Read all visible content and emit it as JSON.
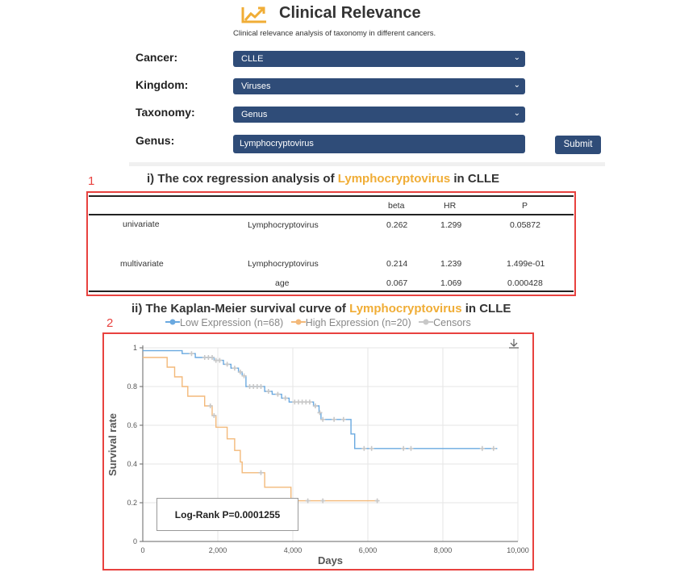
{
  "header": {
    "title": "Clinical Relevance",
    "subtitle": "Clinical relevance analysis of taxonomy in different cancers."
  },
  "form": {
    "cancer_label": "Cancer:",
    "cancer_value": "CLLE",
    "kingdom_label": "Kingdom:",
    "kingdom_value": "Viruses",
    "taxonomy_label": "Taxonomy:",
    "taxonomy_value": "Genus",
    "genus_label": "Genus:",
    "genus_value": "Lymphocryptovirus",
    "submit_label": "Submit"
  },
  "cox": {
    "marker": "1",
    "title_prefix": "i) The cox regression analysis of ",
    "title_taxon": "Lymphocryptovirus",
    "title_suffix": " in CLLE",
    "headers": [
      "beta",
      "HR",
      "P"
    ],
    "rows": [
      {
        "model": "univariate",
        "var": "Lymphocryptovirus",
        "beta": "0.262",
        "hr": "1.299",
        "p": "0.05872"
      },
      {
        "model": "multivariate",
        "var": "Lymphocryptovirus",
        "beta": "0.214",
        "hr": "1.239",
        "p": "1.499e-01"
      },
      {
        "model": "",
        "var": "age",
        "beta": "0.067",
        "hr": "1.069",
        "p": "0.000428"
      }
    ]
  },
  "km": {
    "marker": "2",
    "title_prefix": "ii) The Kaplan-Meier survival curve of ",
    "title_taxon": "Lymphocryptovirus",
    "title_suffix": " in CLLE",
    "download_icon": "download-icon",
    "logrank_label": "Log-Rank P=0.0001255"
  },
  "chart_data": {
    "type": "line",
    "xlabel": "Days",
    "ylabel": "Survival rate",
    "xlim": [
      0,
      10000
    ],
    "ylim": [
      0,
      1
    ],
    "xticks": [
      "0",
      "2,000",
      "4,000",
      "6,000",
      "8,000",
      "10,000"
    ],
    "yticks": [
      "0",
      "0.2",
      "0.4",
      "0.6",
      "0.8",
      "1"
    ],
    "grid": true,
    "legend_position": "top",
    "series": [
      {
        "name": "Low Expression (n=68)",
        "color": "#6aa9e0",
        "steps": [
          [
            0,
            0.985
          ],
          [
            1050,
            0.985
          ],
          [
            1050,
            0.97
          ],
          [
            1400,
            0.97
          ],
          [
            1400,
            0.95
          ],
          [
            1900,
            0.95
          ],
          [
            1900,
            0.935
          ],
          [
            2150,
            0.935
          ],
          [
            2150,
            0.915
          ],
          [
            2350,
            0.915
          ],
          [
            2350,
            0.895
          ],
          [
            2550,
            0.895
          ],
          [
            2550,
            0.875
          ],
          [
            2650,
            0.875
          ],
          [
            2650,
            0.855
          ],
          [
            2750,
            0.855
          ],
          [
            2750,
            0.8
          ],
          [
            3250,
            0.8
          ],
          [
            3250,
            0.775
          ],
          [
            3450,
            0.775
          ],
          [
            3450,
            0.76
          ],
          [
            3700,
            0.76
          ],
          [
            3700,
            0.74
          ],
          [
            3900,
            0.74
          ],
          [
            3900,
            0.72
          ],
          [
            4550,
            0.72
          ],
          [
            4550,
            0.7
          ],
          [
            4700,
            0.7
          ],
          [
            4700,
            0.665
          ],
          [
            4750,
            0.665
          ],
          [
            4750,
            0.63
          ],
          [
            5550,
            0.63
          ],
          [
            5550,
            0.555
          ],
          [
            5650,
            0.555
          ],
          [
            5650,
            0.48
          ],
          [
            9450,
            0.48
          ]
        ],
        "censors": [
          [
            1300,
            0.97
          ],
          [
            1650,
            0.95
          ],
          [
            1750,
            0.95
          ],
          [
            1850,
            0.95
          ],
          [
            1950,
            0.935
          ],
          [
            2050,
            0.935
          ],
          [
            2250,
            0.915
          ],
          [
            2450,
            0.895
          ],
          [
            2600,
            0.875
          ],
          [
            2700,
            0.855
          ],
          [
            2850,
            0.8
          ],
          [
            2950,
            0.8
          ],
          [
            3050,
            0.8
          ],
          [
            3150,
            0.8
          ],
          [
            3350,
            0.775
          ],
          [
            3600,
            0.76
          ],
          [
            3800,
            0.74
          ],
          [
            4050,
            0.72
          ],
          [
            4150,
            0.72
          ],
          [
            4250,
            0.72
          ],
          [
            4350,
            0.72
          ],
          [
            4450,
            0.72
          ],
          [
            4600,
            0.7
          ],
          [
            4720,
            0.665
          ],
          [
            4800,
            0.63
          ],
          [
            5100,
            0.63
          ],
          [
            5350,
            0.63
          ],
          [
            5900,
            0.48
          ],
          [
            6100,
            0.48
          ],
          [
            6950,
            0.48
          ],
          [
            7150,
            0.48
          ],
          [
            9050,
            0.48
          ],
          [
            9350,
            0.48
          ]
        ]
      },
      {
        "name": "High Expression (n=20)",
        "color": "#f3b97a",
        "steps": [
          [
            0,
            0.95
          ],
          [
            650,
            0.95
          ],
          [
            650,
            0.9
          ],
          [
            850,
            0.9
          ],
          [
            850,
            0.85
          ],
          [
            1050,
            0.85
          ],
          [
            1050,
            0.8
          ],
          [
            1200,
            0.8
          ],
          [
            1200,
            0.75
          ],
          [
            1650,
            0.75
          ],
          [
            1650,
            0.7
          ],
          [
            1850,
            0.7
          ],
          [
            1850,
            0.65
          ],
          [
            1950,
            0.65
          ],
          [
            1950,
            0.59
          ],
          [
            2250,
            0.59
          ],
          [
            2250,
            0.53
          ],
          [
            2450,
            0.53
          ],
          [
            2450,
            0.47
          ],
          [
            2600,
            0.47
          ],
          [
            2600,
            0.41
          ],
          [
            2650,
            0.41
          ],
          [
            2650,
            0.355
          ],
          [
            3250,
            0.355
          ],
          [
            3250,
            0.28
          ],
          [
            3950,
            0.28
          ],
          [
            3950,
            0.21
          ],
          [
            6300,
            0.21
          ]
        ],
        "censors": [
          [
            1800,
            0.7
          ],
          [
            1900,
            0.65
          ],
          [
            3150,
            0.355
          ],
          [
            4400,
            0.21
          ],
          [
            4800,
            0.21
          ],
          [
            6250,
            0.21
          ]
        ]
      },
      {
        "name": "Censors",
        "color": "#c8c8c8"
      }
    ],
    "annotations": [
      "Log-Rank P=0.0001255"
    ]
  }
}
